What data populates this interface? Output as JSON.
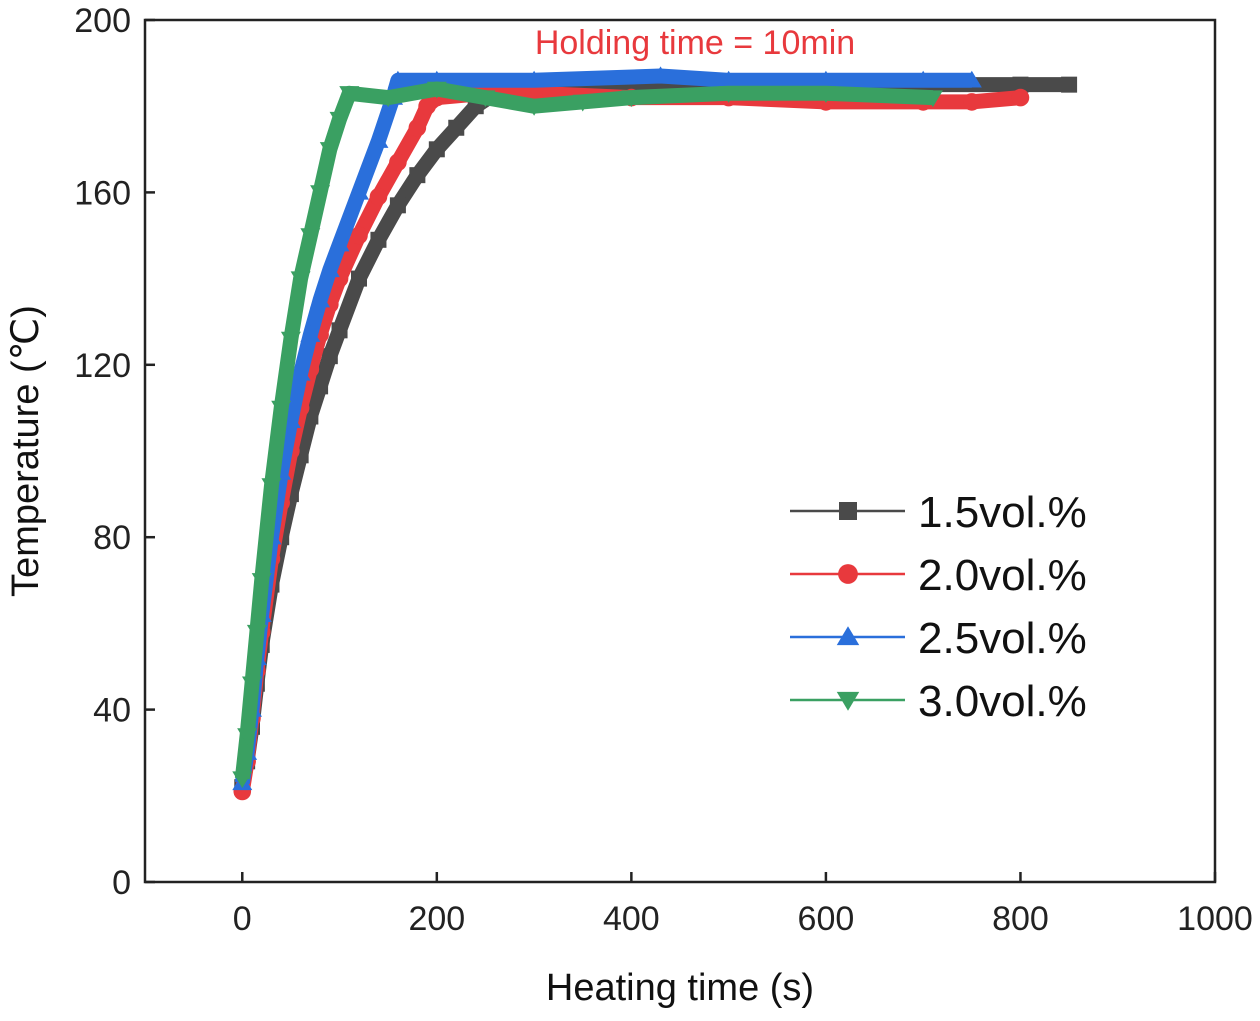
{
  "chart_data": {
    "type": "line",
    "title": "",
    "xlabel": "Heating time (s)",
    "ylabel": "Temperature (℃)",
    "xlim": [
      -100,
      1000
    ],
    "ylim": [
      0,
      200
    ],
    "xticks": [
      0,
      200,
      400,
      600,
      800,
      1000
    ],
    "yticks": [
      0,
      40,
      80,
      120,
      160,
      200
    ],
    "xtick_labels": [
      "0",
      "200",
      "400",
      "600",
      "800",
      "1000"
    ],
    "ytick_labels": [
      "0",
      "40",
      "80",
      "120",
      "160",
      "200"
    ],
    "grid": false,
    "legend_position": "center-right",
    "annotation": {
      "text": "Holding time = 10min",
      "x": 470,
      "y": 195,
      "color": "#e8393d"
    },
    "series": [
      {
        "name": "1.5vol.%",
        "color": "#4a4a4a",
        "marker": "square",
        "x": [
          0,
          5,
          10,
          15,
          20,
          30,
          40,
          50,
          60,
          70,
          80,
          90,
          100,
          120,
          140,
          160,
          180,
          200,
          220,
          240,
          260,
          300,
          400,
          500,
          600,
          700,
          800,
          850
        ],
        "y": [
          22,
          28,
          36,
          46,
          55,
          69,
          80,
          90,
          99,
          108,
          115,
          122,
          128,
          140,
          149,
          157,
          164,
          170,
          175,
          180,
          183,
          184,
          185,
          185,
          185,
          185,
          185,
          185
        ]
      },
      {
        "name": "2.0vol.%",
        "color": "#e8393d",
        "marker": "circle",
        "x": [
          0,
          5,
          10,
          15,
          20,
          30,
          40,
          50,
          60,
          70,
          80,
          90,
          100,
          120,
          140,
          160,
          180,
          190,
          200,
          250,
          300,
          400,
          500,
          600,
          700,
          750,
          800
        ],
        "y": [
          21,
          28,
          38,
          49,
          58,
          75,
          88,
          100,
          110,
          119,
          127,
          134,
          140,
          150,
          159,
          167,
          175,
          180,
          182,
          183,
          183,
          182,
          182,
          181,
          181,
          181,
          182
        ]
      },
      {
        "name": "2.5vol.%",
        "color": "#2a6fdb",
        "marker": "triangle-up",
        "x": [
          0,
          5,
          10,
          15,
          20,
          30,
          40,
          50,
          60,
          70,
          80,
          90,
          100,
          120,
          140,
          155,
          160,
          200,
          300,
          430,
          500,
          600,
          700,
          750
        ],
        "y": [
          23,
          30,
          40,
          52,
          62,
          80,
          95,
          107,
          118,
          127,
          135,
          142,
          148,
          160,
          172,
          182,
          186,
          186,
          186,
          187,
          186,
          186,
          186,
          186
        ]
      },
      {
        "name": "3.0vol.%",
        "color": "#3aa062",
        "marker": "triangle-down",
        "x": [
          0,
          5,
          10,
          15,
          20,
          30,
          40,
          50,
          60,
          70,
          80,
          90,
          100,
          110,
          150,
          200,
          250,
          300,
          350,
          400,
          500,
          600,
          710
        ],
        "y": [
          24,
          34,
          46,
          58,
          70,
          92,
          110,
          126,
          140,
          150,
          160,
          170,
          177,
          183,
          182,
          184,
          182,
          180,
          181,
          182,
          183,
          183,
          182
        ]
      }
    ]
  }
}
